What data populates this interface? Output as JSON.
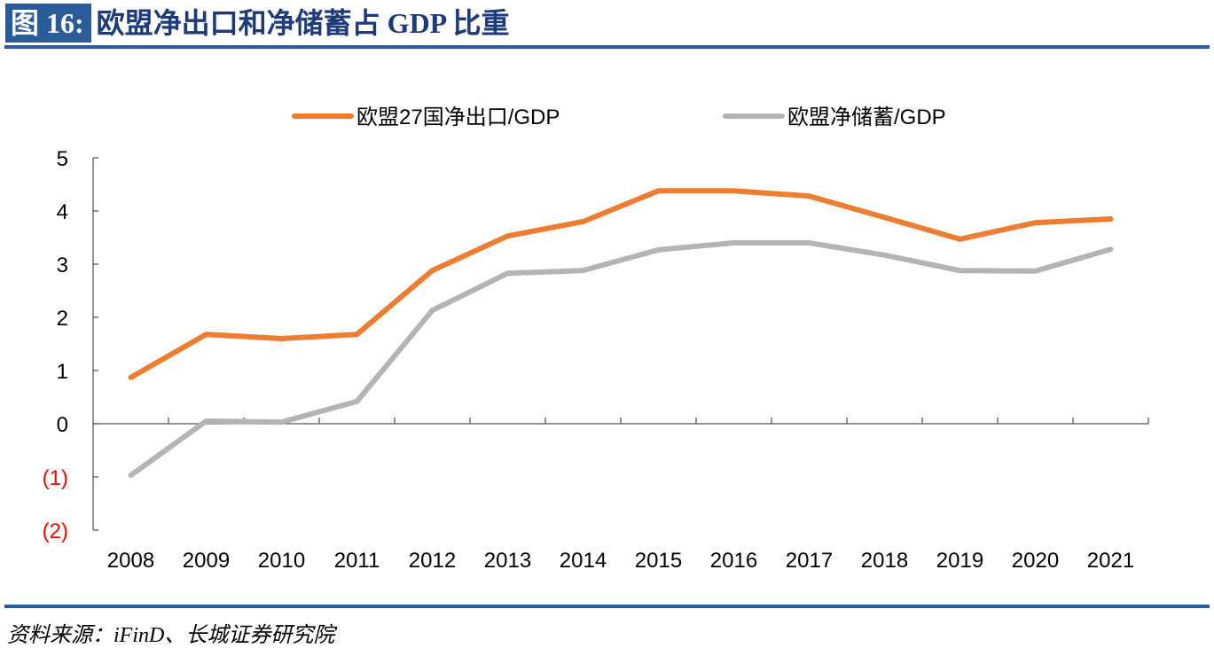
{
  "header": {
    "figure_label": "图 16:",
    "title": "欧盟净出口和净储蓄占 GDP 比重"
  },
  "footer": {
    "source": "资料来源：iFinD、长城证券研究院"
  },
  "colors": {
    "brand_blue": "#2b5c98",
    "series_orange": "#ed7d31",
    "series_gray": "#b4b4b4",
    "negative_label": "#ff0000"
  },
  "chart_data": {
    "type": "line",
    "title": "欧盟净出口和净储蓄占 GDP 比重",
    "xlabel": "",
    "ylabel": "",
    "x": [
      "2008",
      "2009",
      "2010",
      "2011",
      "2012",
      "2013",
      "2014",
      "2015",
      "2016",
      "2017",
      "2018",
      "2019",
      "2020",
      "2021"
    ],
    "series": [
      {
        "name": "欧盟27国净出口/GDP",
        "color": "#ed7d31",
        "values": [
          0.87,
          1.68,
          1.6,
          1.68,
          2.88,
          3.53,
          3.8,
          4.38,
          4.38,
          4.28,
          3.88,
          3.47,
          3.78,
          3.85
        ]
      },
      {
        "name": "欧盟净储蓄/GDP",
        "color": "#b4b4b4",
        "values": [
          -0.97,
          0.05,
          0.03,
          0.42,
          2.13,
          2.83,
          2.88,
          3.27,
          3.4,
          3.4,
          3.17,
          2.88,
          2.87,
          3.28
        ]
      }
    ],
    "ylim": [
      -2,
      5
    ],
    "yticks": [
      5,
      4,
      3,
      2,
      1,
      0,
      -1,
      -2
    ],
    "ytick_labels": [
      "5",
      "4",
      "3",
      "2",
      "1",
      "0",
      "(1)",
      "(2)"
    ],
    "grid": false,
    "legend_position": "top"
  }
}
